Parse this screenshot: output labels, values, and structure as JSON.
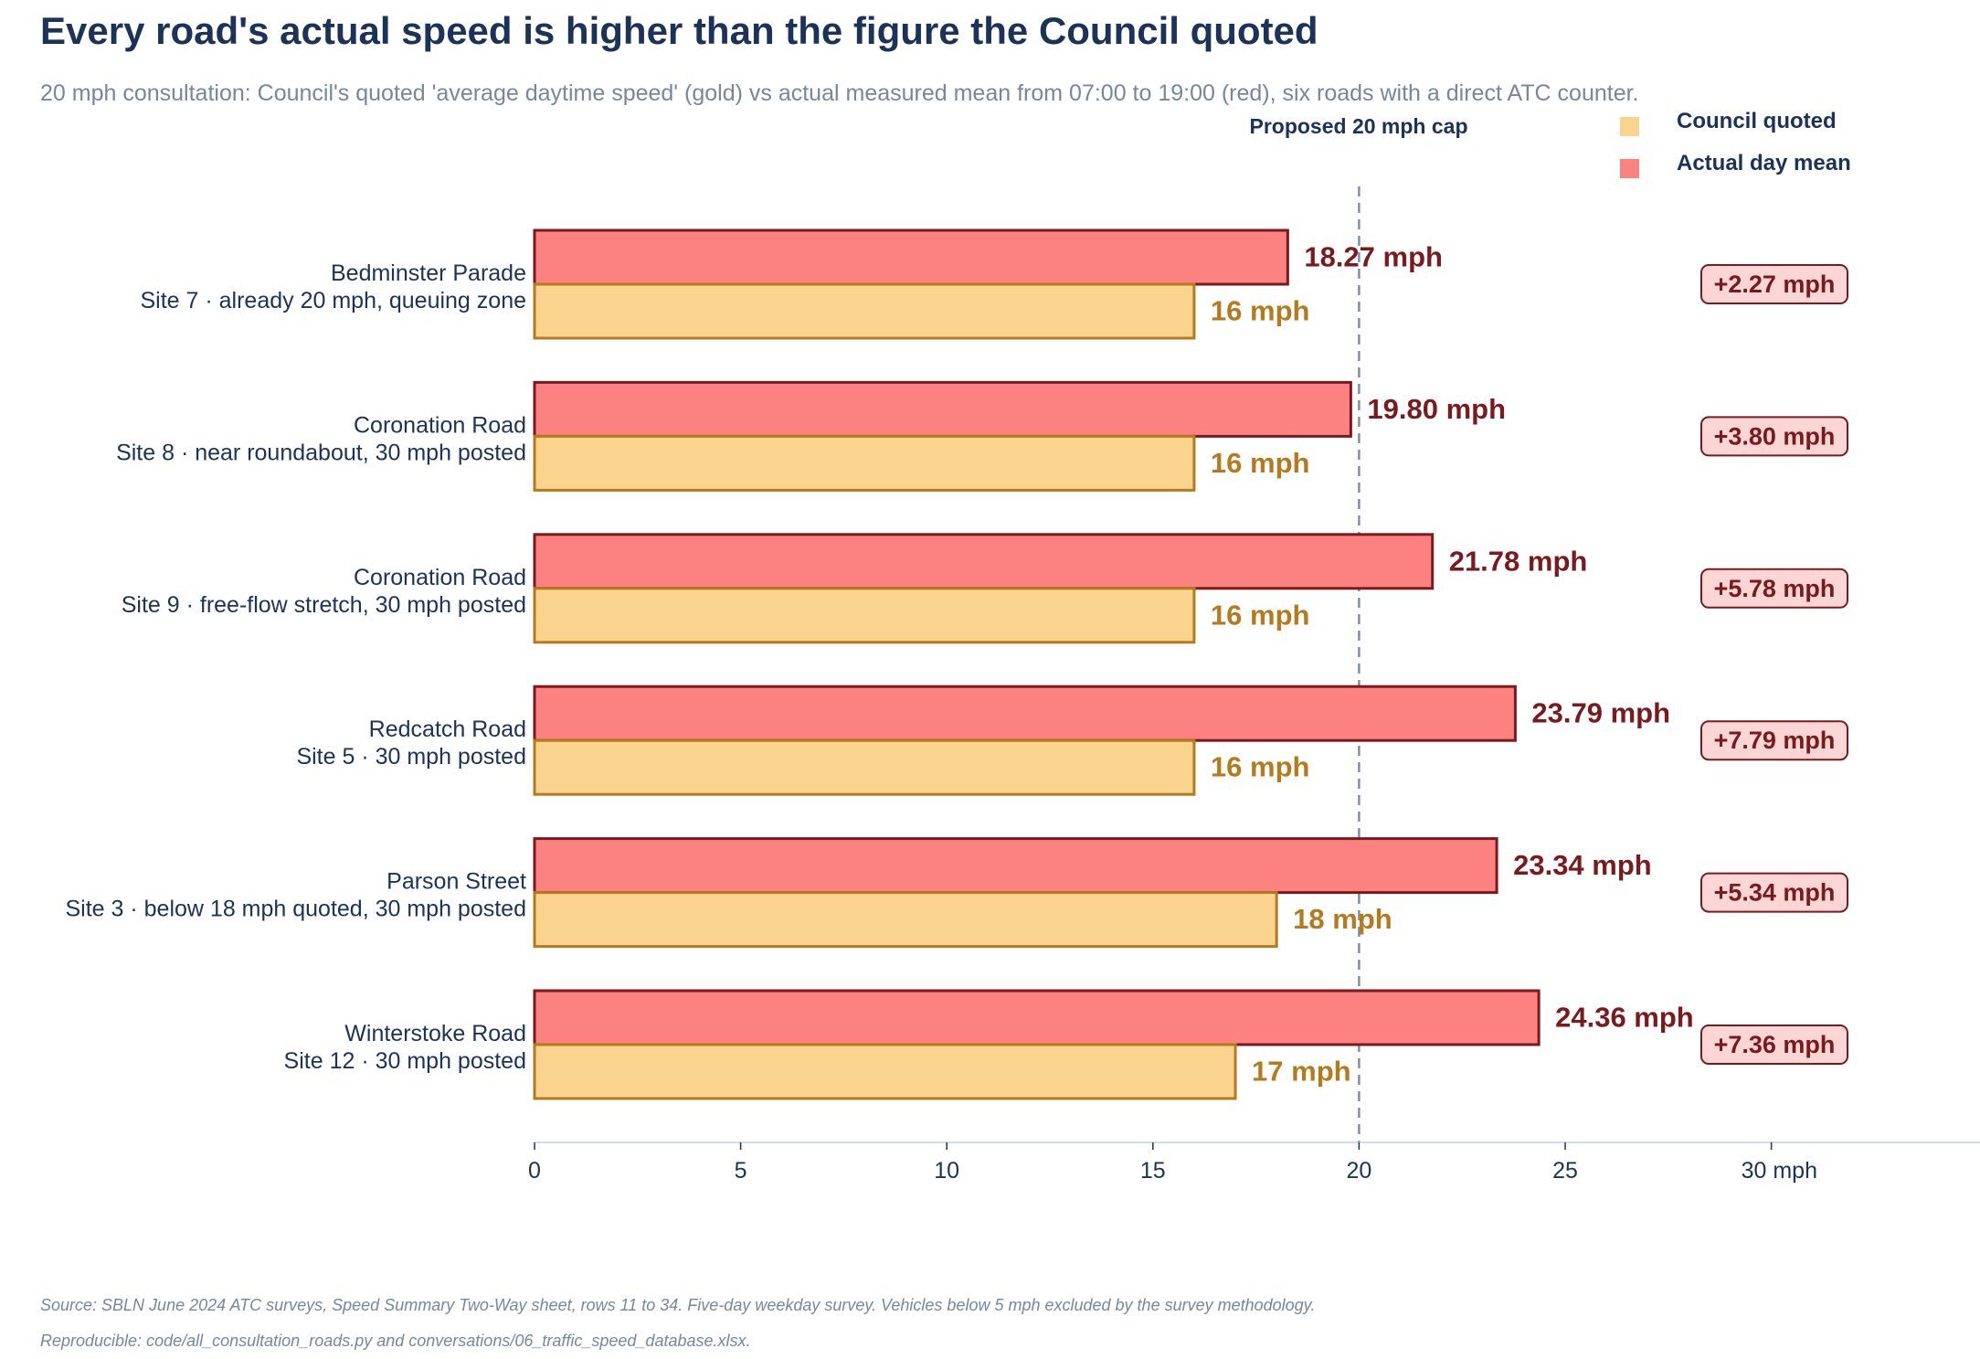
{
  "title": "Every road's actual speed is higher than the figure the Council quoted",
  "subtitle": "20 mph consultation: Council's quoted 'average daytime speed' (gold) vs actual measured mean from 07:00 to 19:00 (red), six roads with a direct ATC counter.",
  "legend": {
    "quoted": "Council quoted",
    "actual": "Actual day mean"
  },
  "colors": {
    "quoted_fill": "#fad48f",
    "quoted_edge": "#b47a1e",
    "actual_fill": "#fb8280",
    "actual_edge": "#7a1a1f",
    "badge_fill": "#fbd6d4",
    "text_dark": "#1b3358",
    "muted": "#76879d"
  },
  "chart_data": {
    "type": "bar",
    "orientation": "horizontal",
    "categories": [
      {
        "road": "Bedminster Parade",
        "detail": "Site 7 · already 20 mph, queuing zone"
      },
      {
        "road": "Coronation Road",
        "detail": "Site 8 · near roundabout, 30 mph posted"
      },
      {
        "road": "Coronation Road",
        "detail": "Site 9 · free-flow stretch, 30 mph posted"
      },
      {
        "road": "Redcatch Road",
        "detail": "Site 5 · 30 mph posted"
      },
      {
        "road": "Parson Street",
        "detail": "Site 3 · below 18 mph quoted, 30 mph posted"
      },
      {
        "road": "Winterstoke Road",
        "detail": "Site 12 · 30 mph posted"
      }
    ],
    "series": [
      {
        "name": "Actual day mean",
        "values": [
          18.27,
          19.8,
          21.78,
          23.79,
          23.34,
          24.36
        ],
        "labels": [
          "18.27 mph",
          "19.80 mph",
          "21.78 mph",
          "23.79 mph",
          "23.34 mph",
          "24.36 mph"
        ]
      },
      {
        "name": "Council quoted",
        "values": [
          16,
          16,
          16,
          16,
          18,
          17
        ],
        "labels": [
          "16 mph",
          "16 mph",
          "16 mph",
          "16 mph",
          "18 mph",
          "17 mph"
        ]
      }
    ],
    "differences": [
      "+2.27 mph",
      "+3.80 mph",
      "+5.78 mph",
      "+7.79 mph",
      "+5.34 mph",
      "+7.36 mph"
    ],
    "reference_line": {
      "value": 20,
      "label": "Proposed 20 mph cap"
    },
    "xlim": [
      0,
      35
    ],
    "xticks": [
      0,
      5,
      10,
      15,
      20,
      25,
      30
    ],
    "xtick_labels": [
      "0",
      "5",
      "10",
      "15",
      "20",
      "25",
      "30 mph"
    ],
    "grid": false,
    "legend_position": "top-right"
  },
  "footnotes": [
    "Source: SBLN June 2024 ATC surveys, Speed Summary Two-Way sheet, rows 11 to 34. Five-day weekday survey. Vehicles below 5 mph excluded by the survey methodology.",
    "Reproducible: code/all_consultation_roads.py and conversations/06_traffic_speed_database.xlsx."
  ]
}
